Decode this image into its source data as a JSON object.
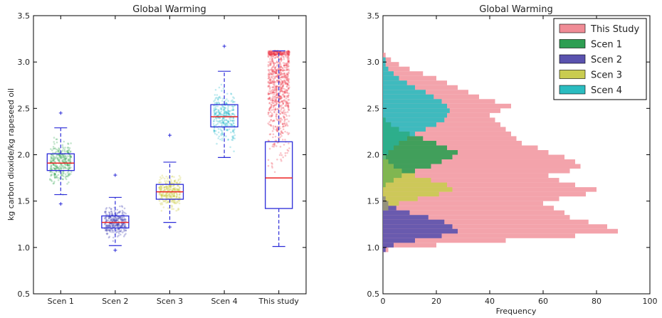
{
  "chart_data": [
    {
      "type": "box",
      "title": "Global Warming",
      "xlabel": "",
      "ylabel": "kg carbon dioxide/kg rapeseed oil",
      "ylim": [
        0.5,
        3.5
      ],
      "yticks": [
        "0.5",
        "1.0",
        "1.5",
        "2.0",
        "2.5",
        "3.0",
        "3.5"
      ],
      "categories": [
        "Scen 1",
        "Scen 2",
        "Scen 3",
        "Scen 4",
        "This study"
      ],
      "boxes": [
        {
          "label": "Scen 1",
          "q1": 1.83,
          "median": 1.91,
          "q3": 2.01,
          "whisker_low": 1.57,
          "whisker_high": 2.29,
          "min": 1.47,
          "max": 2.45,
          "color": "#2aa04a"
        },
        {
          "label": "Scen 2",
          "q1": 1.21,
          "median": 1.27,
          "q3": 1.34,
          "whisker_low": 1.02,
          "whisker_high": 1.54,
          "min": 0.97,
          "max": 1.78,
          "color": "#3b3bb0"
        },
        {
          "label": "Scen 3",
          "q1": 1.52,
          "median": 1.6,
          "q3": 1.68,
          "whisker_low": 1.27,
          "whisker_high": 1.92,
          "min": 1.22,
          "max": 2.21,
          "color": "#c8c83a"
        },
        {
          "label": "Scen 4",
          "q1": 2.3,
          "median": 2.41,
          "q3": 2.54,
          "whisker_low": 1.97,
          "whisker_high": 2.9,
          "min": 1.97,
          "max": 3.17,
          "color": "#22b8c8"
        },
        {
          "label": "This study",
          "q1": 1.42,
          "median": 1.75,
          "q3": 2.14,
          "whisker_low": 1.01,
          "whisker_high": 3.12,
          "min": 1.01,
          "max": 3.12,
          "color": "#ee3344"
        }
      ],
      "box_color": "#2b2bd8",
      "median_color": "#ee2222"
    },
    {
      "type": "histogram",
      "orientation": "horizontal",
      "title": "Global Warming",
      "xlabel": "Frequency",
      "ylabel": "",
      "xlim": [
        0,
        100
      ],
      "ylim": [
        0.5,
        3.5
      ],
      "xticks": [
        "0",
        "20",
        "40",
        "60",
        "80",
        "100"
      ],
      "yticks": [
        "0.5",
        "1.0",
        "1.5",
        "2.0",
        "2.5",
        "3.0",
        "3.5"
      ],
      "legend_position": "top-right",
      "bin_edges": [
        0.95,
        1.0,
        1.05,
        1.1,
        1.15,
        1.2,
        1.25,
        1.3,
        1.35,
        1.4,
        1.45,
        1.5,
        1.55,
        1.6,
        1.65,
        1.7,
        1.75,
        1.8,
        1.85,
        1.9,
        1.95,
        2.0,
        2.05,
        2.1,
        2.15,
        2.2,
        2.25,
        2.3,
        2.35,
        2.4,
        2.45,
        2.5,
        2.55,
        2.6,
        2.65,
        2.7,
        2.75,
        2.8,
        2.85,
        2.9,
        2.95,
        3.0,
        3.05,
        3.1,
        3.15
      ],
      "series": [
        {
          "name": "This Study",
          "color": "#f08c96",
          "values": [
            2,
            20,
            46,
            72,
            88,
            84,
            77,
            70,
            68,
            64,
            60,
            66,
            76,
            80,
            72,
            66,
            62,
            70,
            74,
            72,
            68,
            62,
            58,
            52,
            50,
            48,
            46,
            44,
            42,
            40,
            44,
            48,
            42,
            36,
            32,
            28,
            24,
            20,
            15,
            10,
            6,
            3,
            1,
            0
          ]
        },
        {
          "name": "Scen 1",
          "color": "#2e9e52",
          "values": [
            0,
            0,
            0,
            0,
            0,
            0,
            0,
            0,
            0,
            0,
            0,
            0,
            0,
            0,
            1,
            4,
            7,
            12,
            18,
            22,
            26,
            28,
            24,
            20,
            15,
            10,
            6,
            3,
            1,
            0,
            0,
            0,
            0,
            0,
            0,
            0,
            0,
            0,
            0,
            0,
            0,
            0,
            0,
            0
          ]
        },
        {
          "name": "Scen 2",
          "color": "#5a52ae",
          "values": [
            1,
            4,
            12,
            22,
            28,
            26,
            23,
            17,
            10,
            5,
            2,
            1,
            0,
            0,
            0,
            0,
            0,
            0,
            0,
            0,
            0,
            0,
            0,
            0,
            0,
            0,
            0,
            0,
            0,
            0,
            0,
            0,
            0,
            0,
            0,
            0,
            0,
            0,
            0,
            0,
            0,
            0,
            0,
            0
          ]
        },
        {
          "name": "Scen 3",
          "color": "#c9cc50",
          "values": [
            0,
            0,
            0,
            0,
            0,
            0,
            0,
            0,
            0,
            2,
            6,
            13,
            21,
            26,
            24,
            18,
            12,
            7,
            4,
            2,
            1,
            0,
            0,
            0,
            0,
            0,
            0,
            0,
            0,
            0,
            0,
            0,
            0,
            0,
            0,
            0,
            0,
            0,
            0,
            0,
            0,
            0,
            0,
            0
          ]
        },
        {
          "name": "Scen 4",
          "color": "#2bbcc0",
          "values": [
            0,
            0,
            0,
            0,
            0,
            0,
            0,
            0,
            0,
            0,
            0,
            0,
            0,
            0,
            0,
            0,
            0,
            0,
            0,
            0,
            1,
            2,
            4,
            6,
            9,
            12,
            16,
            20,
            23,
            24,
            25,
            24,
            22,
            19,
            16,
            12,
            9,
            6,
            4,
            2,
            1,
            1,
            0,
            0
          ]
        }
      ]
    }
  ]
}
